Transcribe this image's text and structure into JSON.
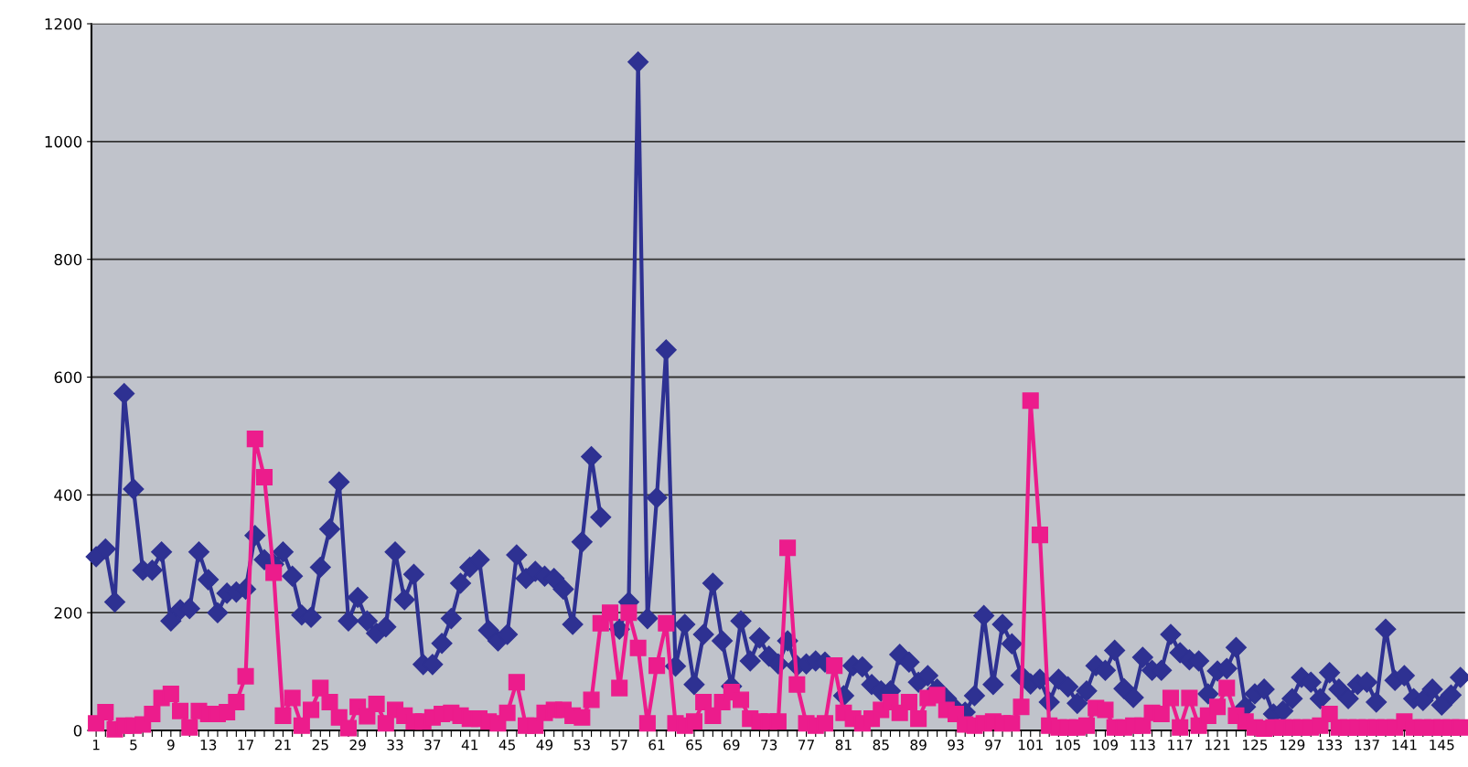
{
  "chart_data": {
    "type": "line",
    "categories": [
      "1",
      null,
      null,
      null,
      "5",
      null,
      null,
      null,
      "9",
      null,
      null,
      null,
      "13",
      null,
      null,
      null,
      "17",
      null,
      null,
      null,
      "21",
      null,
      null,
      null,
      "25",
      null,
      null,
      null,
      "29",
      null,
      null,
      null,
      "33",
      null,
      null,
      null,
      "37",
      null,
      null,
      null,
      "41",
      null,
      null,
      null,
      "45",
      null,
      null,
      null,
      "49",
      null,
      null,
      null,
      "53",
      null,
      null,
      null,
      "57",
      null,
      null,
      null,
      "61",
      null,
      null,
      null,
      "65",
      null,
      null,
      null,
      "69",
      null,
      null,
      null,
      "73",
      null,
      null,
      null,
      "77",
      null,
      null,
      null,
      "81",
      null,
      null,
      null,
      "85",
      null,
      null,
      null,
      "89",
      null,
      null,
      null,
      "93",
      null,
      null,
      null,
      "97",
      null,
      null,
      null,
      "101",
      null,
      null,
      null,
      "105",
      null,
      null,
      null,
      "109",
      null,
      null,
      null,
      "113",
      null,
      null,
      null,
      "117",
      null,
      null,
      null,
      "121",
      null,
      null,
      null,
      "125",
      null,
      null,
      null,
      "129",
      null,
      null,
      null,
      "133",
      null,
      null,
      null,
      "137",
      null,
      null,
      null,
      "141",
      null,
      null,
      null,
      "145",
      null,
      null
    ],
    "series": [
      {
        "color": "#2e3192",
        "marker": "diamond",
        "values": [
          295,
          308,
          218,
          572,
          410,
          272,
          272,
          303,
          186,
          205,
          207,
          303,
          256,
          200,
          233,
          235,
          240,
          331,
          290,
          282,
          303,
          262,
          196,
          192,
          277,
          342,
          422,
          186,
          226,
          186,
          165,
          176,
          303,
          222,
          265,
          112,
          112,
          148,
          190,
          250,
          277,
          290,
          170,
          152,
          163,
          298,
          258,
          270,
          262,
          258,
          240,
          180,
          320,
          465,
          362,
          null,
          172,
          218,
          1135,
          190,
          395,
          646,
          109,
          180,
          78,
          163,
          250,
          152,
          75,
          186,
          118,
          157,
          126,
          113,
          152,
          110,
          113,
          118,
          116,
          null,
          59,
          110,
          108,
          78,
          67,
          67,
          129,
          116,
          82,
          93,
          70,
          54,
          36,
          31,
          59,
          195,
          78,
          180,
          147,
          93,
          79,
          87,
          48,
          87,
          74,
          46,
          67,
          110,
          102,
          136,
          71,
          56,
          124,
          102,
          102,
          163,
          132,
          120,
          118,
          62,
          101,
          105,
          141,
          40,
          62,
          70,
          28,
          33,
          54,
          90,
          82,
          54,
          98,
          70,
          54,
          78,
          82,
          48,
          172,
          85,
          93,
          54,
          51,
          70,
          43,
          60,
          90
        ]
      },
      {
        "color": "#ec1c8c",
        "marker": "square",
        "values": [
          12,
          31,
          2,
          8,
          8,
          10,
          28,
          55,
          62,
          33,
          5,
          33,
          28,
          28,
          31,
          48,
          92,
          495,
          430,
          268,
          25,
          55,
          8,
          35,
          72,
          48,
          22,
          4,
          40,
          24,
          45,
          12,
          35,
          25,
          15,
          15,
          22,
          28,
          30,
          25,
          20,
          20,
          15,
          12,
          30,
          82,
          8,
          8,
          30,
          35,
          35,
          25,
          22,
          52,
          182,
          200,
          72,
          200,
          140,
          12,
          110,
          182,
          12,
          8,
          15,
          48,
          25,
          48,
          65,
          52,
          20,
          15,
          15,
          15,
          310,
          78,
          12,
          8,
          12,
          110,
          30,
          20,
          12,
          20,
          35,
          48,
          30,
          48,
          20,
          55,
          60,
          35,
          28,
          10,
          8,
          12,
          15,
          12,
          12,
          40,
          560,
          332,
          8,
          5,
          5,
          5,
          8,
          38,
          35,
          5,
          5,
          8,
          8,
          30,
          28,
          55,
          5,
          55,
          8,
          25,
          40,
          72,
          25,
          15,
          5,
          3,
          5,
          5,
          5,
          5,
          5,
          8,
          28,
          5,
          5,
          5,
          5,
          5,
          5,
          5,
          15,
          5,
          5,
          5,
          5,
          5,
          5
        ]
      }
    ],
    "ylim": [
      0,
      1200
    ],
    "yticks": [
      0,
      200,
      400,
      600,
      800,
      1000,
      1200
    ],
    "grid": "y",
    "line_style": "solid"
  }
}
